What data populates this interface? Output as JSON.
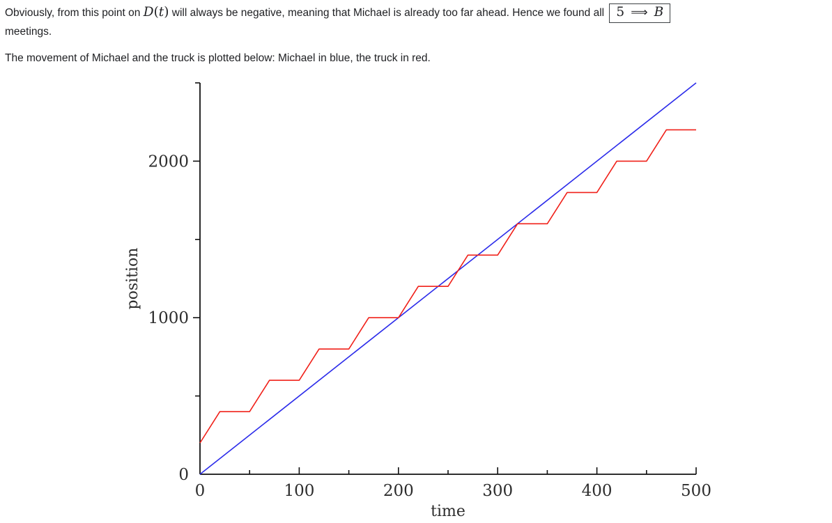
{
  "text": {
    "p1_part1": "Obviously, from this point on ",
    "math_d": "D",
    "math_open": "(",
    "math_t": "t",
    "math_close": ")",
    "p1_part2": " will always be negative, meaning that Michael is already too far ahead. Hence we found all ",
    "box_num": "5",
    "box_arrow": "⟹",
    "box_letter": "B",
    "p1_line2": "meetings.",
    "p2": "The movement of Michael and the truck is plotted below: Michael in blue, the truck in red."
  },
  "colors": {
    "body_text": "#202124",
    "axis": "#101010",
    "michael_blue": "#2b2bea",
    "truck_red": "#f02019"
  },
  "chart_data": {
    "type": "line",
    "title": "",
    "xlabel": "time",
    "ylabel": "position",
    "xlim": [
      0,
      500
    ],
    "ylim": [
      0,
      2500
    ],
    "grid": false,
    "legend": "none",
    "x_ticks": [
      0,
      100,
      200,
      300,
      400,
      500
    ],
    "x_minor_ticks": [
      50,
      150,
      250,
      350,
      450
    ],
    "y_ticks": [
      0,
      1000,
      2000
    ],
    "y_minor_ticks": [
      500,
      1500,
      2500
    ],
    "series": [
      {
        "name": "michael",
        "color": "#2b2bea",
        "points": [
          [
            0,
            0
          ],
          [
            500,
            2500
          ]
        ]
      },
      {
        "name": "truck",
        "color": "#f02019",
        "points": [
          [
            0,
            200
          ],
          [
            20,
            400
          ],
          [
            50,
            400
          ],
          [
            70,
            600
          ],
          [
            100,
            600
          ],
          [
            120,
            800
          ],
          [
            150,
            800
          ],
          [
            170,
            1000
          ],
          [
            200,
            1000
          ],
          [
            220,
            1200
          ],
          [
            250,
            1200
          ],
          [
            270,
            1400
          ],
          [
            300,
            1400
          ],
          [
            320,
            1600
          ],
          [
            350,
            1600
          ],
          [
            370,
            1800
          ],
          [
            400,
            1800
          ],
          [
            420,
            2000
          ],
          [
            450,
            2000
          ],
          [
            470,
            2200
          ],
          [
            500,
            2200
          ]
        ]
      }
    ]
  }
}
